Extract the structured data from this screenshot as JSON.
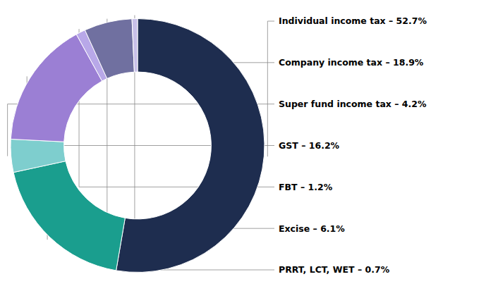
{
  "chart_data": {
    "type": "donut",
    "categories": [
      "Individual income tax – 52.7%",
      "Company income tax – 18.9%",
      "Super fund income tax – 4.2%",
      "GST – 16.2%",
      "FBT – 1.2%",
      "Excise – 6.1%",
      "PRRT, LCT, WET – 0.7%"
    ],
    "values": [
      52.7,
      18.9,
      4.2,
      16.2,
      1.2,
      6.1,
      0.7
    ],
    "colors": [
      "#1e2d4f",
      "#1a9e8e",
      "#7ecece",
      "#9b7fd4",
      "#b8a8e8",
      "#7070a0",
      "#c8c0e8"
    ]
  }
}
